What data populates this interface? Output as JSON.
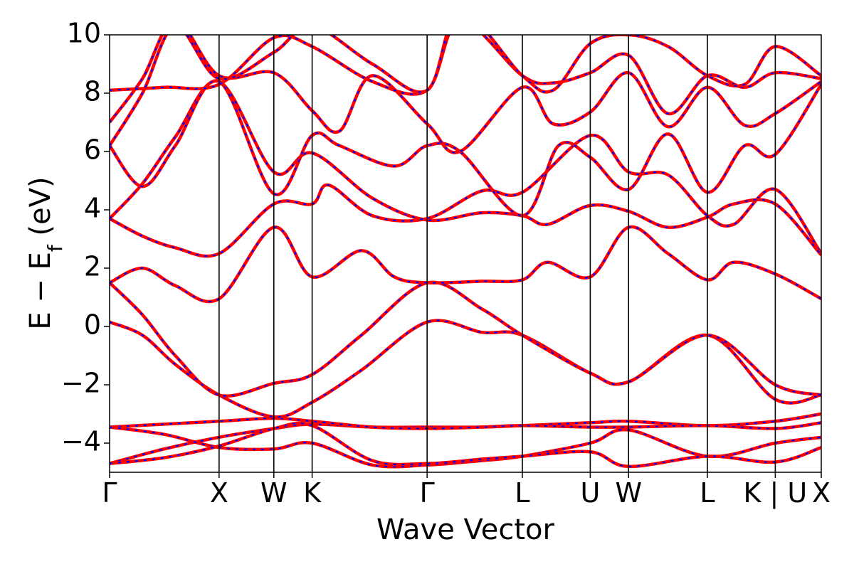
{
  "chart_data": {
    "type": "line",
    "title": "",
    "xlabel": "Wave Vector",
    "ylabel": "E − E",
    "ylabel_sub": "f",
    "ylabel_unit": " (eV)",
    "ylim": [
      -5,
      10
    ],
    "yticks": [
      -4,
      -2,
      0,
      2,
      4,
      6,
      8,
      10
    ],
    "ytick_labels": [
      "−4",
      "−2",
      "0",
      "2",
      "4",
      "6",
      "8",
      "10"
    ],
    "xlim": [
      0,
      6.5
    ],
    "kpoints": [
      {
        "label": "Γ",
        "x": 0.0
      },
      {
        "label": "X",
        "x": 1.0
      },
      {
        "label": "W",
        "x": 1.5
      },
      {
        "label": "K",
        "x": 1.85
      },
      {
        "label": "Γ",
        "x": 2.9
      },
      {
        "label": "L",
        "x": 3.77
      },
      {
        "label": "U",
        "x": 4.39
      },
      {
        "label": "W",
        "x": 4.74
      },
      {
        "label": "L",
        "x": 5.46
      },
      {
        "label": "K | U",
        "x": 6.08
      },
      {
        "label": "X",
        "x": 6.5
      }
    ],
    "colors": {
      "band_outer": "#ff0000",
      "band_inner": "#0000ff",
      "axis": "#000000"
    },
    "series": [
      {
        "values": [
          [
            0,
            -4.7
          ],
          [
            0.5,
            -4.2
          ],
          [
            1.0,
            -3.8
          ],
          [
            1.5,
            -3.5
          ],
          [
            1.85,
            -3.35
          ],
          [
            2.4,
            -3.45
          ],
          [
            2.9,
            -3.45
          ],
          [
            3.4,
            -3.45
          ],
          [
            3.77,
            -3.4
          ],
          [
            4.39,
            -3.3
          ],
          [
            4.74,
            -3.25
          ],
          [
            5.46,
            -3.4
          ],
          [
            6.08,
            -3.25
          ],
          [
            6.5,
            -3.0
          ]
        ]
      },
      {
        "values": [
          [
            0,
            -3.45
          ],
          [
            0.5,
            -3.35
          ],
          [
            1.0,
            -3.25
          ],
          [
            1.5,
            -3.15
          ],
          [
            1.85,
            -3.25
          ],
          [
            2.4,
            -3.45
          ],
          [
            2.9,
            -3.5
          ],
          [
            3.4,
            -3.45
          ],
          [
            3.77,
            -3.4
          ],
          [
            4.39,
            -3.45
          ],
          [
            4.74,
            -3.45
          ],
          [
            5.46,
            -3.4
          ],
          [
            6.08,
            -3.5
          ],
          [
            6.5,
            -3.3
          ]
        ]
      },
      {
        "values": [
          [
            0,
            -3.45
          ],
          [
            0.5,
            -3.7
          ],
          [
            1.0,
            -4.15
          ],
          [
            1.5,
            -4.2
          ],
          [
            1.85,
            -4.0
          ],
          [
            2.4,
            -4.75
          ],
          [
            2.9,
            -4.75
          ],
          [
            3.4,
            -4.6
          ],
          [
            3.77,
            -4.45
          ],
          [
            4.39,
            -4.0
          ],
          [
            4.74,
            -3.55
          ],
          [
            5.46,
            -4.45
          ],
          [
            6.08,
            -4.0
          ],
          [
            6.5,
            -3.8
          ]
        ]
      },
      {
        "values": [
          [
            0,
            -4.7
          ],
          [
            0.5,
            -4.5
          ],
          [
            1.0,
            -4.1
          ],
          [
            1.5,
            -3.5
          ],
          [
            1.85,
            -3.4
          ],
          [
            2.4,
            -4.6
          ],
          [
            2.9,
            -4.7
          ],
          [
            3.4,
            -4.55
          ],
          [
            3.77,
            -4.45
          ],
          [
            4.39,
            -4.3
          ],
          [
            4.74,
            -4.8
          ],
          [
            5.46,
            -4.45
          ],
          [
            6.08,
            -4.65
          ],
          [
            6.5,
            -4.15
          ]
        ]
      },
      {
        "values": [
          [
            0,
            0.15
          ],
          [
            0.3,
            -0.3
          ],
          [
            0.6,
            -1.3
          ],
          [
            1.0,
            -2.35
          ],
          [
            1.5,
            -3.1
          ],
          [
            1.85,
            -2.6
          ],
          [
            2.3,
            -1.5
          ],
          [
            2.9,
            0.15
          ],
          [
            3.4,
            -0.2
          ],
          [
            3.77,
            -0.3
          ],
          [
            4.39,
            -1.6
          ],
          [
            4.74,
            -1.9
          ],
          [
            5.46,
            -0.3
          ],
          [
            6.08,
            -2.5
          ],
          [
            6.5,
            -2.35
          ]
        ]
      },
      {
        "values": [
          [
            0,
            1.5
          ],
          [
            0.3,
            0.4
          ],
          [
            0.6,
            -1.0
          ],
          [
            1.0,
            -2.35
          ],
          [
            1.5,
            -1.95
          ],
          [
            1.85,
            -1.65
          ],
          [
            2.3,
            -0.3
          ],
          [
            2.9,
            1.5
          ],
          [
            3.4,
            0.6
          ],
          [
            3.77,
            -0.3
          ],
          [
            4.39,
            -1.6
          ],
          [
            4.74,
            -1.9
          ],
          [
            5.46,
            -0.3
          ],
          [
            6.08,
            -2.0
          ],
          [
            6.5,
            -2.35
          ]
        ]
      },
      {
        "values": [
          [
            0,
            1.5
          ],
          [
            0.3,
            2.0
          ],
          [
            0.6,
            1.4
          ],
          [
            1.0,
            0.95
          ],
          [
            1.5,
            3.4
          ],
          [
            1.85,
            1.7
          ],
          [
            2.3,
            2.6
          ],
          [
            2.6,
            1.7
          ],
          [
            2.9,
            1.5
          ],
          [
            3.4,
            1.55
          ],
          [
            3.77,
            1.6
          ],
          [
            4.0,
            2.2
          ],
          [
            4.39,
            1.7
          ],
          [
            4.74,
            3.4
          ],
          [
            5.1,
            2.5
          ],
          [
            5.46,
            1.6
          ],
          [
            5.7,
            2.2
          ],
          [
            6.08,
            1.8
          ],
          [
            6.5,
            0.95
          ]
        ]
      },
      {
        "values": [
          [
            0,
            3.7
          ],
          [
            0.3,
            3.1
          ],
          [
            0.6,
            2.7
          ],
          [
            1.0,
            2.5
          ],
          [
            1.5,
            4.2
          ],
          [
            1.85,
            4.2
          ],
          [
            2.0,
            4.85
          ],
          [
            2.4,
            3.8
          ],
          [
            2.9,
            3.7
          ],
          [
            3.4,
            4.65
          ],
          [
            3.77,
            4.6
          ],
          [
            4.39,
            6.55
          ],
          [
            4.74,
            5.3
          ],
          [
            5.1,
            5.2
          ],
          [
            5.46,
            3.8
          ],
          [
            5.7,
            3.5
          ],
          [
            6.08,
            4.7
          ],
          [
            6.5,
            2.5
          ]
        ]
      },
      {
        "values": [
          [
            0,
            3.7
          ],
          [
            0.3,
            4.9
          ],
          [
            0.6,
            6.5
          ],
          [
            1.0,
            8.4
          ],
          [
            1.5,
            5.3
          ],
          [
            1.85,
            5.95
          ],
          [
            2.4,
            4.4
          ],
          [
            2.9,
            3.65
          ],
          [
            3.4,
            3.9
          ],
          [
            3.77,
            3.8
          ],
          [
            4.0,
            3.5
          ],
          [
            4.39,
            4.15
          ],
          [
            4.74,
            3.95
          ],
          [
            5.1,
            3.4
          ],
          [
            5.46,
            3.75
          ],
          [
            5.7,
            4.2
          ],
          [
            6.08,
            4.2
          ],
          [
            6.5,
            2.45
          ]
        ]
      },
      {
        "values": [
          [
            0,
            6.2
          ],
          [
            0.3,
            4.8
          ],
          [
            0.6,
            6.2
          ],
          [
            1.0,
            8.4
          ],
          [
            1.5,
            4.55
          ],
          [
            1.85,
            6.55
          ],
          [
            2.1,
            6.2
          ],
          [
            2.6,
            5.5
          ],
          [
            2.9,
            6.2
          ],
          [
            3.2,
            6.0
          ],
          [
            3.77,
            3.8
          ],
          [
            4.1,
            6.2
          ],
          [
            4.39,
            5.8
          ],
          [
            4.74,
            4.7
          ],
          [
            5.1,
            6.6
          ],
          [
            5.46,
            4.6
          ],
          [
            5.8,
            6.2
          ],
          [
            6.08,
            5.9
          ],
          [
            6.5,
            8.3
          ]
        ]
      },
      {
        "values": [
          [
            0,
            7.0
          ],
          [
            0.3,
            8.5
          ],
          [
            0.6,
            10.5
          ],
          [
            1.0,
            8.6
          ],
          [
            1.5,
            8.7
          ],
          [
            1.85,
            7.4
          ],
          [
            2.1,
            6.7
          ],
          [
            2.4,
            8.6
          ],
          [
            2.9,
            6.95
          ],
          [
            3.2,
            6.0
          ],
          [
            3.77,
            8.2
          ],
          [
            4.05,
            6.95
          ],
          [
            4.39,
            7.35
          ],
          [
            4.74,
            8.7
          ],
          [
            5.1,
            6.85
          ],
          [
            5.46,
            8.2
          ],
          [
            5.8,
            6.9
          ],
          [
            6.08,
            7.3
          ],
          [
            6.5,
            8.4
          ]
        ]
      },
      {
        "values": [
          [
            0,
            8.1
          ],
          [
            0.5,
            8.2
          ],
          [
            1.0,
            8.3
          ],
          [
            1.5,
            9.9
          ],
          [
            1.85,
            9.6
          ],
          [
            2.4,
            8.4
          ],
          [
            2.9,
            8.1
          ],
          [
            3.2,
            10.5
          ],
          [
            3.77,
            8.6
          ],
          [
            4.05,
            8.35
          ],
          [
            4.39,
            8.7
          ],
          [
            4.74,
            9.3
          ],
          [
            5.1,
            7.3
          ],
          [
            5.46,
            8.6
          ],
          [
            5.8,
            8.2
          ],
          [
            6.08,
            8.7
          ],
          [
            6.5,
            8.5
          ]
        ]
      },
      {
        "values": [
          [
            0,
            6.2
          ],
          [
            0.3,
            8.0
          ],
          [
            0.6,
            10.3
          ],
          [
            1.0,
            8.5
          ],
          [
            1.5,
            9.4
          ],
          [
            1.85,
            10.3
          ],
          [
            2.4,
            9.0
          ],
          [
            2.9,
            8.1
          ],
          [
            3.2,
            10.8
          ],
          [
            3.77,
            8.6
          ],
          [
            4.05,
            8.1
          ],
          [
            4.39,
            9.7
          ],
          [
            4.74,
            10.0
          ],
          [
            5.1,
            9.6
          ],
          [
            5.46,
            8.6
          ],
          [
            5.8,
            8.3
          ],
          [
            6.08,
            9.6
          ],
          [
            6.5,
            8.6
          ]
        ]
      }
    ]
  }
}
